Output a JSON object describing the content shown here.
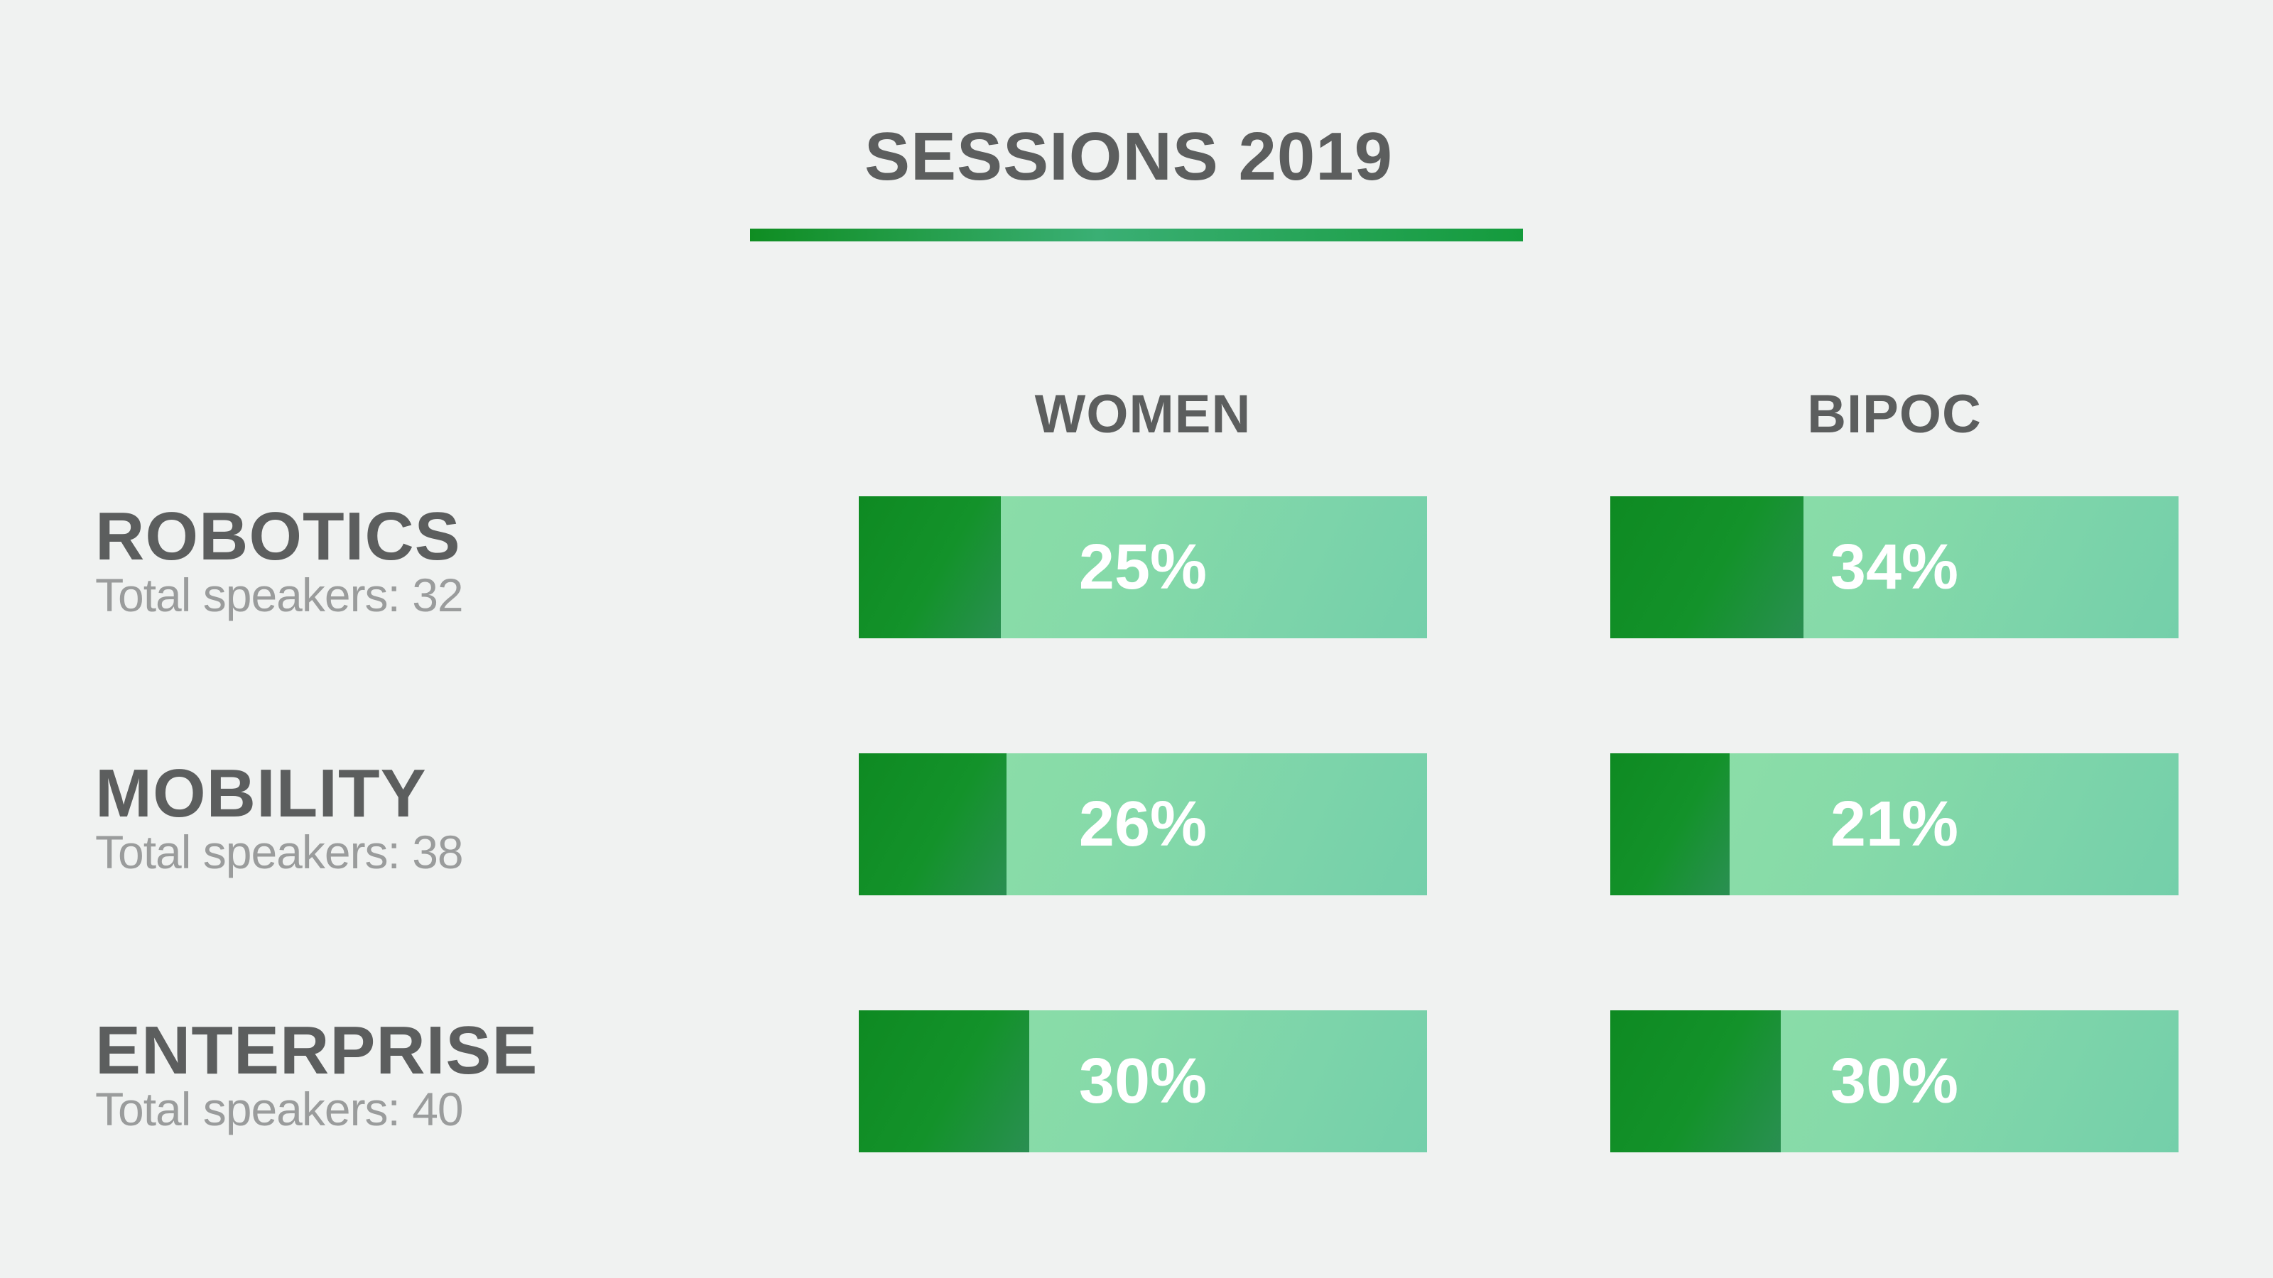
{
  "title": "SESSIONS 2019",
  "columns": [
    "WOMEN",
    "BIPOC"
  ],
  "colors": {
    "background": "#f0f2f1",
    "text_dark": "#5c5e5e",
    "text_light": "#9a9c9c",
    "bar_fill": "#0f8d22",
    "bar_track": "#86daa9"
  },
  "chart_data": {
    "type": "bar",
    "title": "SESSIONS 2019",
    "categories": [
      "ROBOTICS",
      "MOBILITY",
      "ENTERPRISE"
    ],
    "category_totals": [
      "Total speakers: 32",
      "Total speakers: 38",
      "Total speakers: 40"
    ],
    "series": [
      {
        "name": "WOMEN",
        "values": [
          25,
          26,
          30
        ],
        "labels": [
          "25%",
          "26%",
          "30%"
        ]
      },
      {
        "name": "BIPOC",
        "values": [
          34,
          21,
          30
        ],
        "labels": [
          "34%",
          "21%",
          "30%"
        ]
      }
    ],
    "ylim": [
      0,
      100
    ],
    "grid": false
  }
}
